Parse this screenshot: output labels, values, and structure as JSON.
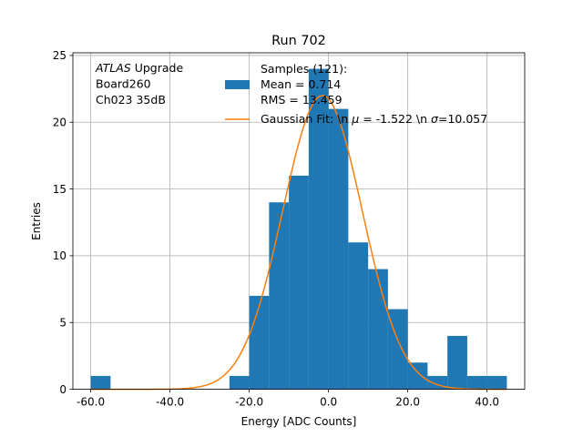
{
  "chart_data": {
    "type": "bar",
    "title": "Run 702",
    "xlabel": "Energy [ADC Counts]",
    "ylabel": "Entries",
    "xlim": [
      -64.5,
      49.5
    ],
    "ylim": [
      0,
      25.2
    ],
    "x_ticks": [
      -60,
      -40,
      -20,
      0,
      20,
      40
    ],
    "x_tick_labels": [
      "-60.0",
      "-40.0",
      "-20.0",
      "0.0",
      "20.0",
      "40.0"
    ],
    "y_ticks": [
      0,
      5,
      10,
      15,
      20,
      25
    ],
    "y_tick_labels": [
      "0",
      "5",
      "10",
      "15",
      "20",
      "25"
    ],
    "grid": true,
    "bin_width": 5,
    "bins": [
      {
        "x0": -60,
        "count": 1
      },
      {
        "x0": -25,
        "count": 1
      },
      {
        "x0": -20,
        "count": 7
      },
      {
        "x0": -15,
        "count": 14
      },
      {
        "x0": -10,
        "count": 16
      },
      {
        "x0": -5,
        "count": 24
      },
      {
        "x0": 0,
        "count": 21
      },
      {
        "x0": 5,
        "count": 11
      },
      {
        "x0": 10,
        "count": 9
      },
      {
        "x0": 15,
        "count": 6
      },
      {
        "x0": 20,
        "count": 2
      },
      {
        "x0": 25,
        "count": 1
      },
      {
        "x0": 30,
        "count": 4
      },
      {
        "x0": 35,
        "count": 1
      },
      {
        "x0": 40,
        "count": 1
      }
    ],
    "fit": {
      "mu": -1.522,
      "sigma": 10.057,
      "peak": 22.0
    },
    "annotation_lines": [
      {
        "italic": "ATLAS",
        "rest": " Upgrade"
      },
      {
        "italic": "",
        "rest": " Board260"
      },
      {
        "italic": "",
        "rest": " Ch023 35dB"
      }
    ],
    "legend": {
      "position": "top-center",
      "hist_label_lines": [
        "Samples (121):",
        " Mean = 0.714",
        " RMS = 13.459"
      ],
      "fit_label": {
        "prefix": "Gaussian Fit: \\n ",
        "mu_symbol": "μ",
        "mid": " = -1.522 \\n ",
        "sigma_symbol": "σ",
        "suffix": "=10.057"
      }
    },
    "colors": {
      "bar": "#1f77b4",
      "fit": "#ff7f0e",
      "grid": "#b0b0b0"
    }
  }
}
